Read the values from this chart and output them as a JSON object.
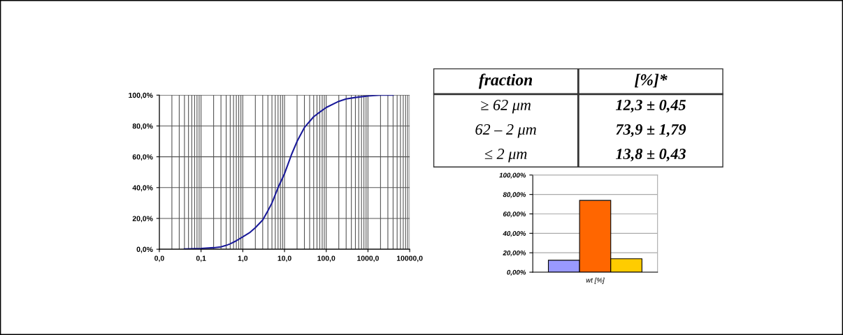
{
  "chart_data": [
    {
      "type": "line",
      "x": [
        0.04,
        0.1,
        0.2,
        0.3,
        0.4,
        0.5,
        0.7,
        1,
        1.5,
        2,
        3,
        4,
        5,
        7,
        10,
        15,
        20,
        30,
        50,
        70,
        100,
        200,
        300,
        500,
        1000,
        2000,
        4000
      ],
      "series": [
        {
          "color": "#1a1a99",
          "values": [
            0.2,
            0.5,
            1,
            1.5,
            2.5,
            3.5,
            5.5,
            8,
            11,
            14,
            19,
            25,
            30,
            40,
            49,
            62,
            70,
            79,
            86,
            89,
            92,
            96,
            97.5,
            98.5,
            99.5,
            100,
            100
          ]
        }
      ],
      "log": "x",
      "xlim": [
        0.01,
        10000
      ],
      "ylim": [
        0,
        100
      ],
      "xticks": [
        {
          "value": 0.01,
          "label": "0,0"
        },
        {
          "value": 0.1,
          "label": "0,1"
        },
        {
          "value": 1,
          "label": "1,0"
        },
        {
          "value": 10,
          "label": "10,0"
        },
        {
          "value": 100,
          "label": "100,0"
        },
        {
          "value": 1000,
          "label": "1000,0"
        },
        {
          "value": 10000,
          "label": "10000,0"
        }
      ],
      "yticks": [
        {
          "value": 0,
          "label": "0,0%"
        },
        {
          "value": 20,
          "label": "20,0%"
        },
        {
          "value": 40,
          "label": "40,0%"
        },
        {
          "value": 60,
          "label": "60,0%"
        },
        {
          "value": 80,
          "label": "80,0%"
        },
        {
          "value": 100,
          "label": "100,0%"
        }
      ],
      "grid": true
    },
    {
      "type": "other",
      "annotations": [
        "fraction",
        "[%]*",
        "≥ 62 μm",
        "12,3 ± 0,45",
        "62 – 2 μm",
        "73,9 ± 1,79",
        "≤ 2 μm",
        "13,8 ± 0,43"
      ]
    },
    {
      "type": "bar",
      "categories": [
        null,
        null,
        null
      ],
      "xlabel": "wt [%]",
      "values": [
        12.3,
        73.9,
        13.8
      ],
      "colors": [
        "#9999ff",
        "#ff6600",
        "#ffcc00"
      ],
      "ylim": [
        0,
        100
      ],
      "yticks": [
        {
          "value": 0,
          "label": "0,00%"
        },
        {
          "value": 20,
          "label": "20,00%"
        },
        {
          "value": 40,
          "label": "40,00%"
        },
        {
          "value": 60,
          "label": "60,00%"
        },
        {
          "value": 80,
          "label": "80,00%"
        },
        {
          "value": 100,
          "label": "100,00%"
        }
      ],
      "grid": "y"
    }
  ]
}
